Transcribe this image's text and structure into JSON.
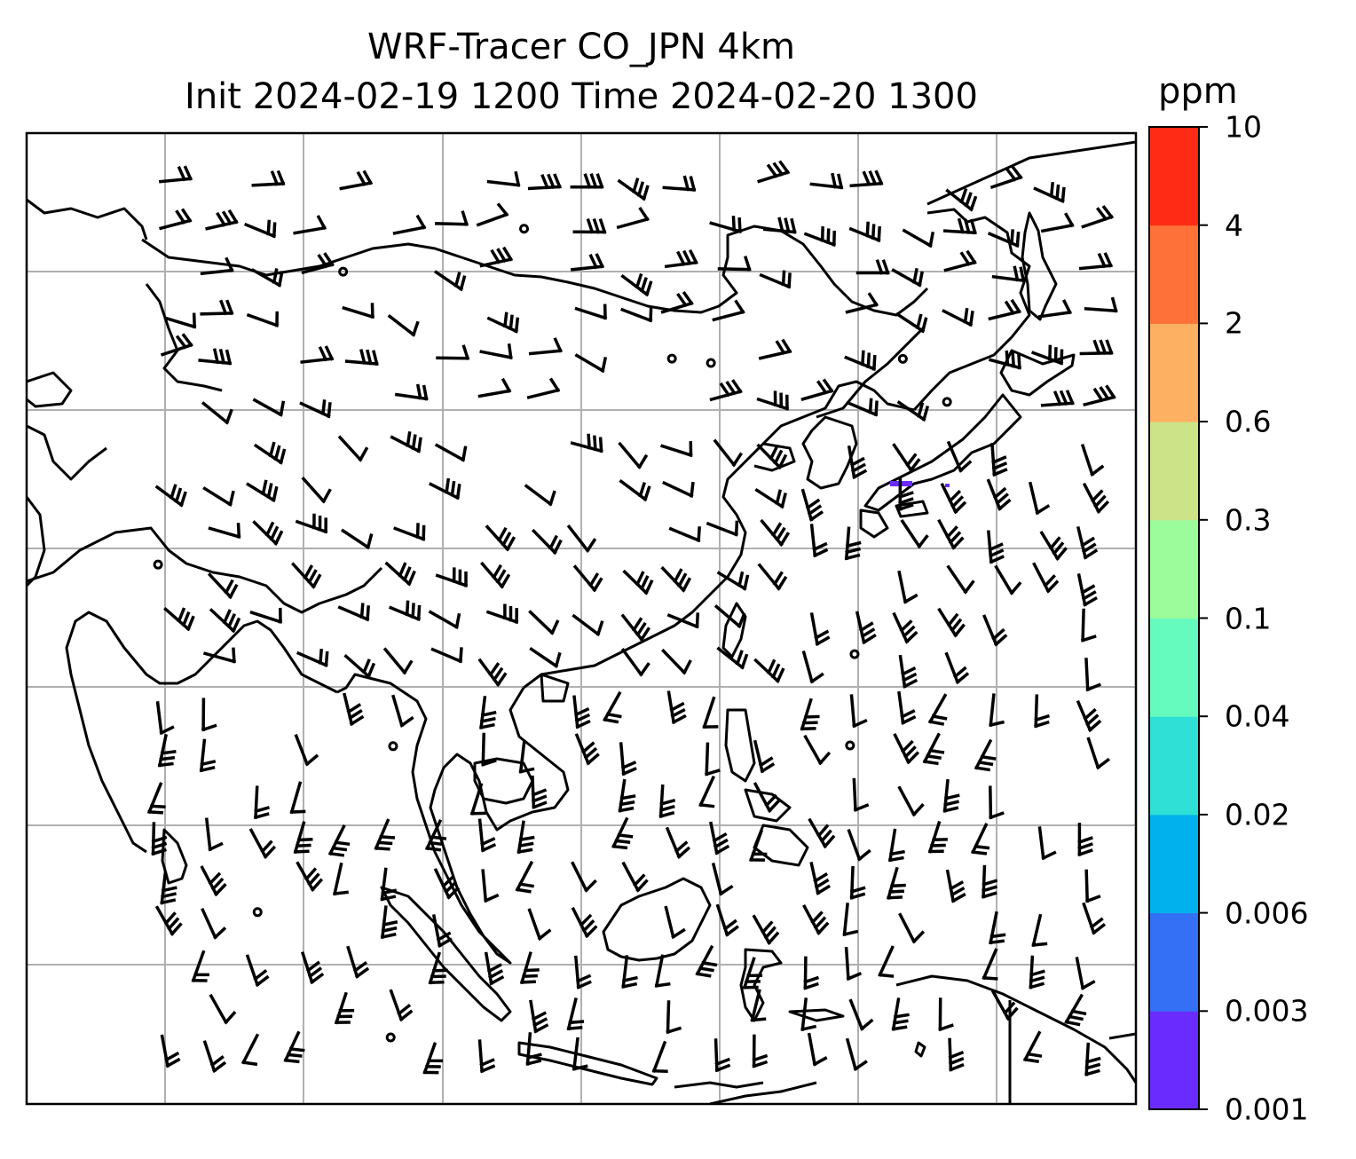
{
  "title": {
    "line1": "WRF-Tracer CO_JPN 4km",
    "line2": "Init 2024-02-19 1200 Time 2024-02-20 1300"
  },
  "colorbar": {
    "unit": "ppm",
    "levels": [
      "0.001",
      "0.003",
      "0.006",
      "0.02",
      "0.04",
      "0.1",
      "0.3",
      "0.6",
      "2",
      "4",
      "10"
    ],
    "colors": [
      "#6a2bff",
      "#3370f5",
      "#00b1ee",
      "#2ee0d6",
      "#66fbbe",
      "#9cfb9b",
      "#cde388",
      "#fdb062",
      "#fe7239",
      "#ff2b15"
    ]
  },
  "map": {
    "gridline_color": "#b0b0b0",
    "coastline_color": "#000000",
    "tracer_patch_color": "#6a2bff",
    "wind_barb_color": "#000000"
  }
}
